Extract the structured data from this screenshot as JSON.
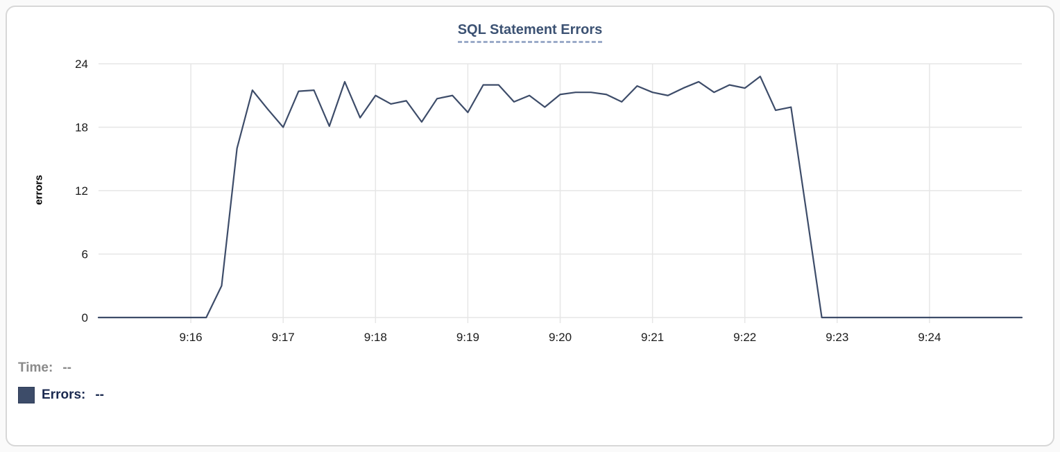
{
  "card": {
    "title": "SQL Statement Errors"
  },
  "chart_data": {
    "type": "line",
    "title": "SQL Statement Errors",
    "xlabel": "",
    "ylabel": "errors",
    "ylim": [
      0,
      24
    ],
    "y_ticks": [
      0,
      6,
      12,
      18,
      24
    ],
    "x_tick_labels": [
      "9:16",
      "9:17",
      "9:18",
      "9:19",
      "9:20",
      "9:21",
      "9:22",
      "9:23",
      "9:24"
    ],
    "x_range": {
      "start": "9:15:00",
      "end": "9:25:00",
      "point_interval_seconds": 10,
      "tick_interval": "1 min"
    },
    "grid": true,
    "legend_position": "bottom-left",
    "series": [
      {
        "name": "Errors",
        "color": "#3d4c69",
        "times": [
          "9:15:00",
          "9:15:10",
          "9:15:20",
          "9:15:30",
          "9:15:40",
          "9:15:50",
          "9:16:00",
          "9:16:10",
          "9:16:20",
          "9:16:30",
          "9:16:40",
          "9:16:50",
          "9:17:00",
          "9:17:10",
          "9:17:20",
          "9:17:30",
          "9:17:40",
          "9:17:50",
          "9:18:00",
          "9:18:10",
          "9:18:20",
          "9:18:30",
          "9:18:40",
          "9:18:50",
          "9:19:00",
          "9:19:10",
          "9:19:20",
          "9:19:30",
          "9:19:40",
          "9:19:50",
          "9:20:00",
          "9:20:10",
          "9:20:20",
          "9:20:30",
          "9:20:40",
          "9:20:50",
          "9:21:00",
          "9:21:10",
          "9:21:20",
          "9:21:30",
          "9:21:40",
          "9:21:50",
          "9:22:00",
          "9:22:10",
          "9:22:20",
          "9:22:30",
          "9:22:40",
          "9:22:50",
          "9:23:00",
          "9:23:10",
          "9:23:20",
          "9:23:30",
          "9:23:40",
          "9:23:50",
          "9:24:00",
          "9:24:10",
          "9:24:20",
          "9:24:30",
          "9:24:40",
          "9:24:50",
          "9:25:00"
        ],
        "values": [
          0,
          0,
          0,
          0,
          0,
          0,
          0,
          0,
          3,
          16,
          21.5,
          19.7,
          18,
          21.4,
          21.5,
          18.1,
          22.3,
          18.9,
          21,
          20.2,
          20.5,
          18.5,
          20.7,
          21,
          19.4,
          22,
          22,
          20.4,
          21,
          19.9,
          21.1,
          21.3,
          21.3,
          21.1,
          20.4,
          21.9,
          21.3,
          21,
          21.7,
          22.3,
          21.3,
          22,
          21.7,
          22.8,
          19.6,
          19.9,
          10,
          0,
          0,
          0,
          0,
          0,
          0,
          0,
          0,
          0,
          0,
          0,
          0,
          0,
          0
        ]
      }
    ]
  },
  "tooltip_readout": {
    "time_label": "Time:",
    "time_value": "--",
    "errors_label": "Errors:",
    "errors_value": "--",
    "errors_swatch_color": "#3d4c69"
  },
  "colors": {
    "line": "#3d4c69",
    "title_text": "#3c5273",
    "title_underline": "#9aaac8",
    "grid": "#e6e6e6",
    "axis_text": "#1a1a1a",
    "time_label_text": "#8a8a8a",
    "errors_label_text": "#1b2a50",
    "card_border": "#d7d7d7",
    "background": "#ffffff"
  }
}
